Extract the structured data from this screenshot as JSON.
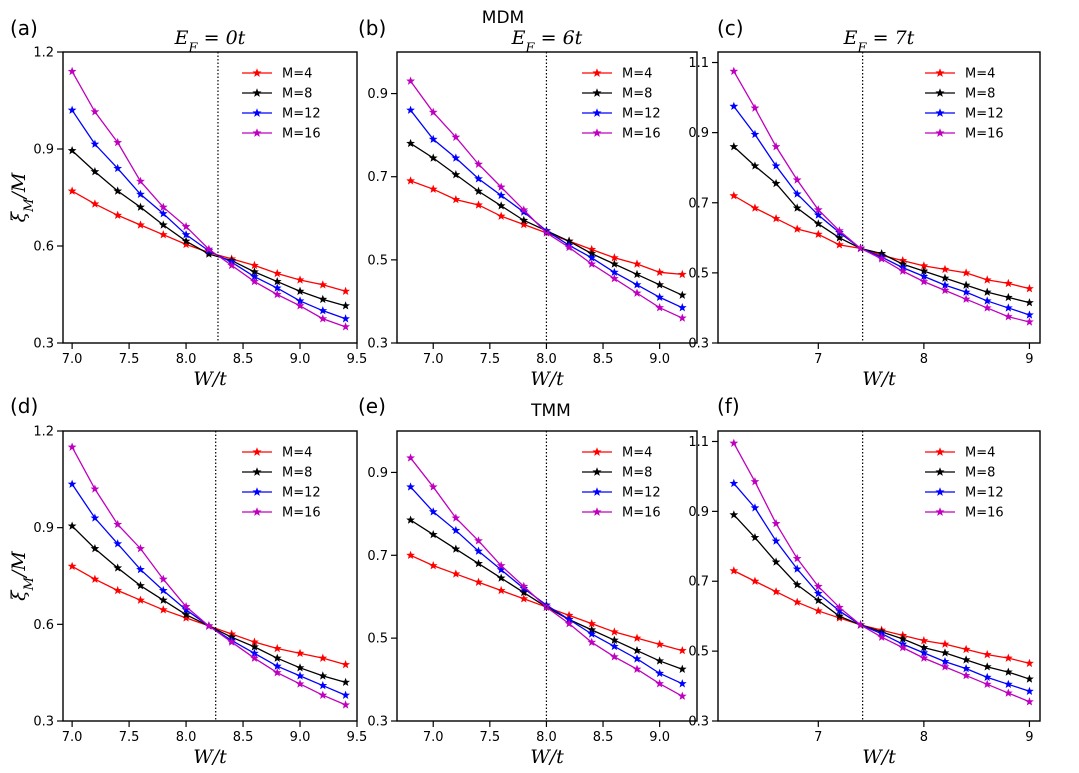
{
  "figure": {
    "header_top": "MDM",
    "header_bottom": "TMM"
  },
  "colors": {
    "M=4": "#ff0000",
    "M=8": "#000000",
    "M=12": "#0000ff",
    "M=16": "#bf00bf"
  },
  "chart_data": [
    {
      "panel": "(a)",
      "type": "line",
      "title": "E_F = 0t",
      "xlabel": "W/t",
      "ylabel": "ξ_M/M",
      "xlim": [
        6.92,
        9.5
      ],
      "ylim": [
        0.3,
        1.2
      ],
      "xticks": [
        7.0,
        7.5,
        8.0,
        8.5,
        9.0,
        9.5
      ],
      "xtick_labels": [
        "7.0",
        "7.5",
        "8.0",
        "8.5",
        "9.0",
        "9.5"
      ],
      "yticks": [
        0.3,
        0.6,
        0.9,
        1.2
      ],
      "ytick_labels": [
        "0.3",
        "0.6",
        "0.9",
        "1.2"
      ],
      "vline": 8.28,
      "x": [
        7.0,
        7.2,
        7.4,
        7.6,
        7.8,
        8.0,
        8.2,
        8.4,
        8.6,
        8.8,
        9.0,
        9.2,
        9.4
      ],
      "series": [
        {
          "name": "M=4",
          "values": [
            0.77,
            0.73,
            0.695,
            0.665,
            0.635,
            0.605,
            0.58,
            0.56,
            0.54,
            0.515,
            0.495,
            0.48,
            0.46
          ]
        },
        {
          "name": "M=8",
          "values": [
            0.895,
            0.83,
            0.77,
            0.72,
            0.665,
            0.615,
            0.575,
            0.555,
            0.52,
            0.49,
            0.46,
            0.435,
            0.415
          ]
        },
        {
          "name": "M=12",
          "values": [
            1.02,
            0.915,
            0.84,
            0.76,
            0.7,
            0.635,
            0.585,
            0.55,
            0.505,
            0.47,
            0.43,
            0.4,
            0.375
          ]
        },
        {
          "name": "M=16",
          "values": [
            1.14,
            1.015,
            0.92,
            0.8,
            0.72,
            0.66,
            0.59,
            0.54,
            0.49,
            0.45,
            0.415,
            0.375,
            0.35
          ]
        }
      ]
    },
    {
      "panel": "(b)",
      "type": "line",
      "title": "E_F = 6t",
      "xlabel": "W/t",
      "ylabel": "",
      "xlim": [
        6.68,
        9.33
      ],
      "ylim": [
        0.3,
        1.0
      ],
      "xticks": [
        7.0,
        7.5,
        8.0,
        8.5,
        9.0
      ],
      "xtick_labels": [
        "7.0",
        "7.5",
        "8.0",
        "8.5",
        "9.0"
      ],
      "yticks": [
        0.3,
        0.5,
        0.7,
        0.9
      ],
      "ytick_labels": [
        "0.3",
        "0.5",
        "0.7",
        "0.9"
      ],
      "vline": 8.0,
      "x": [
        6.8,
        7.0,
        7.2,
        7.4,
        7.6,
        7.8,
        8.0,
        8.2,
        8.4,
        8.6,
        8.8,
        9.0,
        9.2
      ],
      "series": [
        {
          "name": "M=4",
          "values": [
            0.69,
            0.67,
            0.645,
            0.632,
            0.605,
            0.585,
            0.565,
            0.545,
            0.525,
            0.505,
            0.49,
            0.47,
            0.465
          ]
        },
        {
          "name": "M=8",
          "values": [
            0.78,
            0.745,
            0.705,
            0.665,
            0.63,
            0.595,
            0.57,
            0.545,
            0.515,
            0.49,
            0.465,
            0.44,
            0.415
          ]
        },
        {
          "name": "M=12",
          "values": [
            0.86,
            0.79,
            0.745,
            0.695,
            0.655,
            0.615,
            0.57,
            0.535,
            0.505,
            0.47,
            0.44,
            0.41,
            0.385
          ]
        },
        {
          "name": "M=16",
          "values": [
            0.93,
            0.855,
            0.795,
            0.73,
            0.675,
            0.62,
            0.565,
            0.53,
            0.49,
            0.455,
            0.42,
            0.385,
            0.36
          ]
        }
      ]
    },
    {
      "panel": "(c)",
      "type": "line",
      "title": "E_F = 7t",
      "xlabel": "W/t",
      "ylabel": "",
      "xlim": [
        6.05,
        9.1
      ],
      "ylim": [
        0.3,
        1.13
      ],
      "xticks": [
        7,
        8,
        9
      ],
      "xtick_labels": [
        "7",
        "8",
        "9"
      ],
      "yticks": [
        0.3,
        0.5,
        0.7,
        0.9,
        1.1
      ],
      "ytick_labels": [
        "0.3",
        "0.5",
        "0.7",
        "0.9",
        "1.1"
      ],
      "vline": 7.42,
      "x": [
        6.2,
        6.4,
        6.6,
        6.8,
        7.0,
        7.2,
        7.4,
        7.6,
        7.8,
        8.0,
        8.2,
        8.4,
        8.6,
        8.8,
        9.0
      ],
      "series": [
        {
          "name": "M=4",
          "values": [
            0.72,
            0.685,
            0.655,
            0.625,
            0.61,
            0.58,
            0.57,
            0.55,
            0.535,
            0.52,
            0.51,
            0.5,
            0.48,
            0.47,
            0.455
          ]
        },
        {
          "name": "M=8",
          "values": [
            0.86,
            0.805,
            0.755,
            0.685,
            0.64,
            0.6,
            0.57,
            0.555,
            0.525,
            0.505,
            0.485,
            0.465,
            0.445,
            0.43,
            0.415
          ]
        },
        {
          "name": "M=12",
          "values": [
            0.975,
            0.895,
            0.805,
            0.725,
            0.665,
            0.615,
            0.57,
            0.545,
            0.515,
            0.49,
            0.465,
            0.445,
            0.42,
            0.4,
            0.38
          ]
        },
        {
          "name": "M=16",
          "values": [
            1.075,
            0.97,
            0.86,
            0.765,
            0.68,
            0.62,
            0.57,
            0.54,
            0.505,
            0.475,
            0.45,
            0.425,
            0.4,
            0.375,
            0.36
          ]
        }
      ]
    },
    {
      "panel": "(d)",
      "type": "line",
      "title": "",
      "xlabel": "W/t",
      "ylabel": "ξ_M/M",
      "xlim": [
        6.92,
        9.5
      ],
      "ylim": [
        0.3,
        1.2
      ],
      "xticks": [
        7.0,
        7.5,
        8.0,
        8.5,
        9.0,
        9.5
      ],
      "xtick_labels": [
        "7.0",
        "7.5",
        "8.0",
        "8.5",
        "9.0",
        "9.5"
      ],
      "yticks": [
        0.3,
        0.6,
        0.9,
        1.2
      ],
      "ytick_labels": [
        "0.3",
        "0.6",
        "0.9",
        "1.2"
      ],
      "vline": 8.26,
      "x": [
        7.0,
        7.2,
        7.4,
        7.6,
        7.8,
        8.0,
        8.2,
        8.4,
        8.6,
        8.8,
        9.0,
        9.2,
        9.4
      ],
      "series": [
        {
          "name": "M=4",
          "values": [
            0.78,
            0.74,
            0.705,
            0.675,
            0.645,
            0.62,
            0.595,
            0.57,
            0.545,
            0.525,
            0.51,
            0.495,
            0.475
          ]
        },
        {
          "name": "M=8",
          "values": [
            0.905,
            0.835,
            0.775,
            0.72,
            0.675,
            0.63,
            0.595,
            0.56,
            0.53,
            0.495,
            0.465,
            0.44,
            0.42
          ]
        },
        {
          "name": "M=12",
          "values": [
            1.035,
            0.93,
            0.85,
            0.77,
            0.705,
            0.645,
            0.595,
            0.55,
            0.51,
            0.47,
            0.44,
            0.41,
            0.38
          ]
        },
        {
          "name": "M=16",
          "values": [
            1.15,
            1.02,
            0.91,
            0.835,
            0.74,
            0.655,
            0.595,
            0.545,
            0.495,
            0.45,
            0.415,
            0.38,
            0.35
          ]
        }
      ]
    },
    {
      "panel": "(e)",
      "type": "line",
      "title": "",
      "xlabel": "W/t",
      "ylabel": "",
      "xlim": [
        6.68,
        9.33
      ],
      "ylim": [
        0.3,
        1.0
      ],
      "xticks": [
        7.0,
        7.5,
        8.0,
        8.5,
        9.0
      ],
      "xtick_labels": [
        "7.0",
        "7.5",
        "8.0",
        "8.5",
        "9.0"
      ],
      "yticks": [
        0.3,
        0.5,
        0.7,
        0.9
      ],
      "ytick_labels": [
        "0.3",
        "0.5",
        "0.7",
        "0.9"
      ],
      "vline": 8.0,
      "x": [
        6.8,
        7.0,
        7.2,
        7.4,
        7.6,
        7.8,
        8.0,
        8.2,
        8.4,
        8.6,
        8.8,
        9.0,
        9.2
      ],
      "series": [
        {
          "name": "M=4",
          "values": [
            0.7,
            0.675,
            0.655,
            0.635,
            0.615,
            0.595,
            0.575,
            0.555,
            0.535,
            0.515,
            0.5,
            0.485,
            0.47
          ]
        },
        {
          "name": "M=8",
          "values": [
            0.785,
            0.75,
            0.715,
            0.68,
            0.645,
            0.61,
            0.575,
            0.545,
            0.52,
            0.495,
            0.47,
            0.445,
            0.425
          ]
        },
        {
          "name": "M=12",
          "values": [
            0.865,
            0.805,
            0.76,
            0.71,
            0.665,
            0.62,
            0.58,
            0.545,
            0.51,
            0.48,
            0.45,
            0.415,
            0.39
          ]
        },
        {
          "name": "M=16",
          "values": [
            0.935,
            0.865,
            0.79,
            0.735,
            0.675,
            0.625,
            0.575,
            0.535,
            0.49,
            0.455,
            0.425,
            0.39,
            0.36
          ]
        }
      ]
    },
    {
      "panel": "(f)",
      "type": "line",
      "title": "",
      "xlabel": "W/t",
      "ylabel": "",
      "xlim": [
        6.05,
        9.1
      ],
      "ylim": [
        0.3,
        1.13
      ],
      "xticks": [
        7,
        8,
        9
      ],
      "xtick_labels": [
        "7",
        "8",
        "9"
      ],
      "yticks": [
        0.3,
        0.5,
        0.7,
        0.9,
        1.1
      ],
      "ytick_labels": [
        "0.3",
        "0.5",
        "0.7",
        "0.9",
        "1.1"
      ],
      "vline": 7.42,
      "x": [
        6.2,
        6.4,
        6.6,
        6.8,
        7.0,
        7.2,
        7.4,
        7.6,
        7.8,
        8.0,
        8.2,
        8.4,
        8.6,
        8.8,
        9.0
      ],
      "series": [
        {
          "name": "M=4",
          "values": [
            0.73,
            0.7,
            0.67,
            0.64,
            0.615,
            0.595,
            0.575,
            0.56,
            0.545,
            0.53,
            0.52,
            0.505,
            0.49,
            0.48,
            0.465
          ]
        },
        {
          "name": "M=8",
          "values": [
            0.89,
            0.825,
            0.755,
            0.69,
            0.645,
            0.6,
            0.575,
            0.555,
            0.535,
            0.51,
            0.495,
            0.475,
            0.455,
            0.44,
            0.42
          ]
        },
        {
          "name": "M=12",
          "values": [
            0.98,
            0.91,
            0.815,
            0.735,
            0.665,
            0.615,
            0.575,
            0.55,
            0.52,
            0.495,
            0.47,
            0.45,
            0.425,
            0.405,
            0.385
          ]
        },
        {
          "name": "M=16",
          "values": [
            1.095,
            0.985,
            0.865,
            0.765,
            0.685,
            0.625,
            0.575,
            0.54,
            0.51,
            0.48,
            0.455,
            0.43,
            0.405,
            0.38,
            0.355
          ]
        }
      ]
    }
  ]
}
